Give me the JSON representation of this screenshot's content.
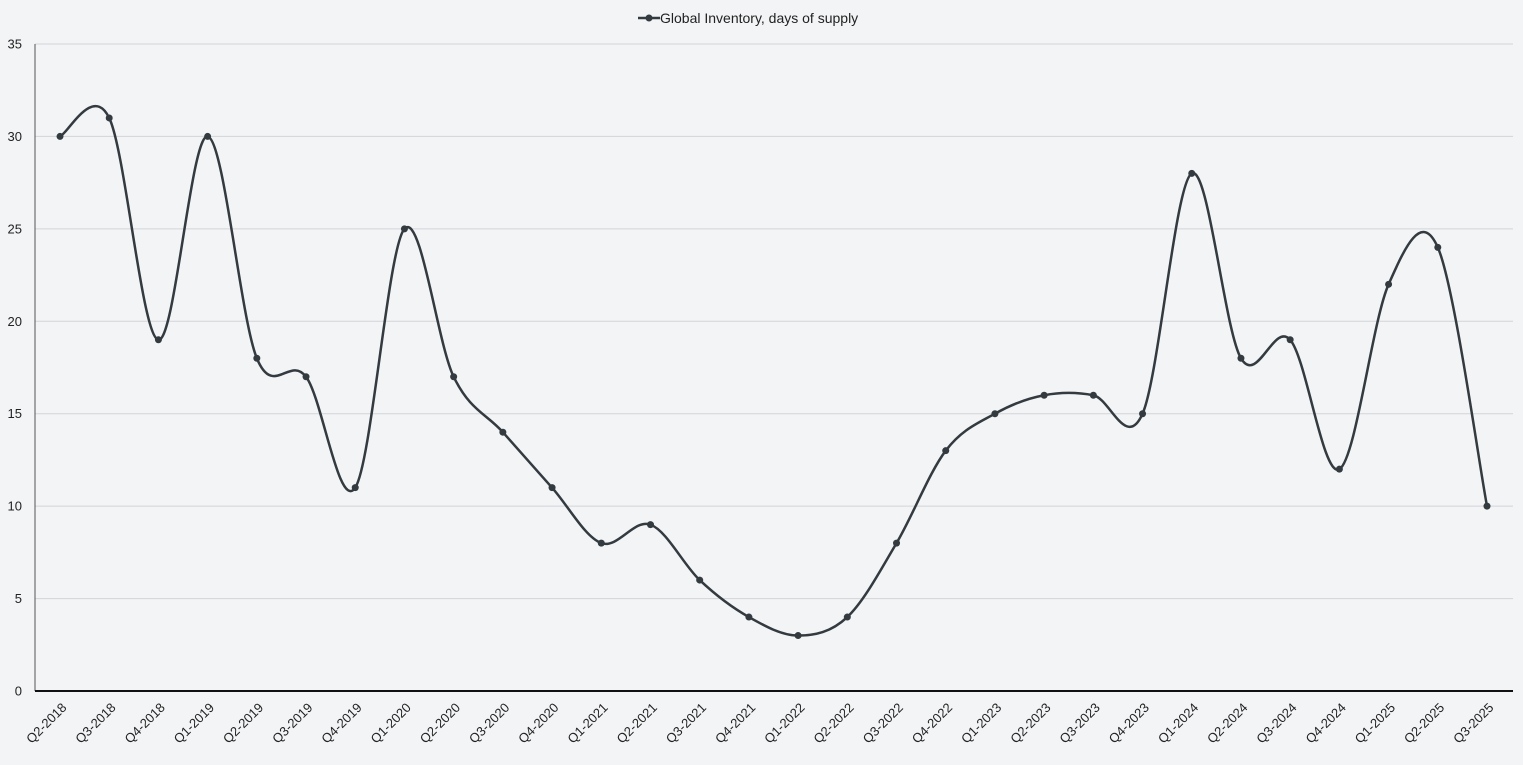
{
  "chart_data": {
    "type": "line",
    "categories": [
      "Q2-2018",
      "Q3-2018",
      "Q4-2018",
      "Q1-2019",
      "Q2-2019",
      "Q3-2019",
      "Q4-2019",
      "Q1-2020",
      "Q2-2020",
      "Q3-2020",
      "Q4-2020",
      "Q1-2021",
      "Q2-2021",
      "Q3-2021",
      "Q4-2021",
      "Q1-2022",
      "Q2-2022",
      "Q3-2022",
      "Q4-2022",
      "Q1-2023",
      "Q2-2023",
      "Q3-2023",
      "Q4-2023",
      "Q1-2024",
      "Q2-2024",
      "Q3-2024",
      "Q4-2024",
      "Q1-2025",
      "Q2-2025",
      "Q3-2025"
    ],
    "series": [
      {
        "name": "Global Inventory, days of supply",
        "values": [
          30,
          31,
          19,
          30,
          18,
          17,
          11,
          25,
          17,
          14,
          11,
          8,
          9,
          6,
          4,
          3,
          4,
          8,
          13,
          15,
          16,
          16,
          15,
          28,
          18,
          19,
          12,
          22,
          24,
          10
        ],
        "color": "#333a40"
      }
    ],
    "yticks": [
      0,
      5,
      10,
      15,
      20,
      25,
      30,
      35
    ],
    "ylim": [
      0,
      35
    ],
    "grid": true,
    "legend_position": "top-center",
    "smooth": true
  }
}
